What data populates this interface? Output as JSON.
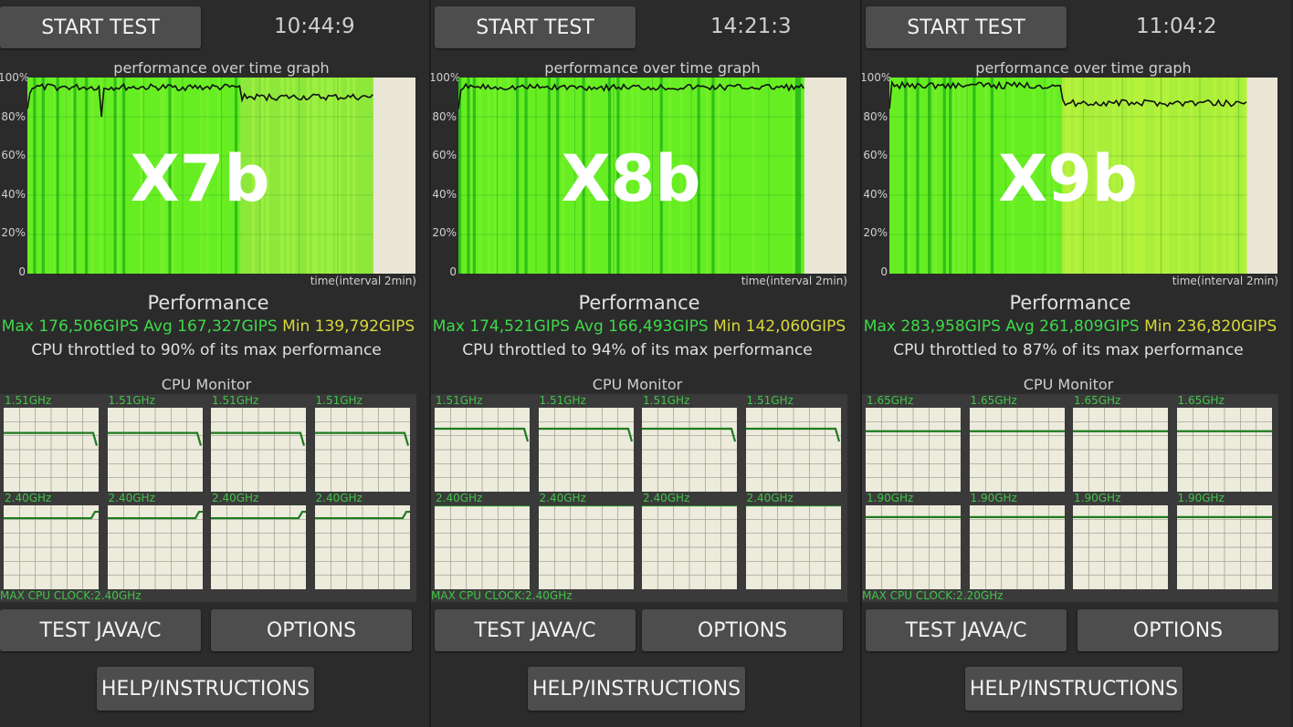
{
  "panels": [
    {
      "start_label": "START TEST",
      "clock": "10:44:9",
      "graph_title": "performance over time graph",
      "y_ticks": [
        "100%",
        "80%",
        "60%",
        "40%",
        "20%",
        "0"
      ],
      "overlay_label": "X7b",
      "time_label": "time(interval 2min)",
      "perf_title": "Performance",
      "stats": {
        "max": "Max 176,506GIPS",
        "avg": "Avg 167,327GIPS",
        "min": "Min 139,792GIPS"
      },
      "throttle": "CPU throttled to 90% of its max performance",
      "monitor_title": "CPU Monitor",
      "cores": [
        {
          "freq": "1.51GHz",
          "level": 0.7,
          "drop": true
        },
        {
          "freq": "1.51GHz",
          "level": 0.7,
          "drop": true
        },
        {
          "freq": "1.51GHz",
          "level": 0.7,
          "drop": true
        },
        {
          "freq": "1.51GHz",
          "level": 0.7,
          "drop": true
        },
        {
          "freq": "2.40GHz",
          "level": 0.88,
          "drop": false,
          "rise": true
        },
        {
          "freq": "2.40GHz",
          "level": 0.88,
          "drop": false,
          "rise": true
        },
        {
          "freq": "2.40GHz",
          "level": 0.88,
          "drop": false,
          "rise": true
        },
        {
          "freq": "2.40GHz",
          "level": 0.88,
          "drop": false,
          "rise": true
        }
      ],
      "max_clock": "MAX CPU CLOCK:2.40GHz",
      "test_label": "TEST JAVA/C",
      "options_label": "OPTIONS",
      "help_label": "HELP/INSTRUCTIONS",
      "progress_fraction": 0.89
    },
    {
      "start_label": "START TEST",
      "clock": "14:21:3",
      "graph_title": "performance over time graph",
      "y_ticks": [
        "100%",
        "80%",
        "60%",
        "40%",
        "20%",
        "0"
      ],
      "overlay_label": "X8b",
      "time_label": "time(interval 2min)",
      "perf_title": "Performance",
      "stats": {
        "max": "Max 174,521GIPS",
        "avg": "Avg 166,493GIPS",
        "min": "Min 142,060GIPS"
      },
      "throttle": "CPU throttled to 94% of its max performance",
      "monitor_title": "CPU Monitor",
      "cores": [
        {
          "freq": "1.51GHz",
          "level": 0.75,
          "drop": true
        },
        {
          "freq": "1.51GHz",
          "level": 0.75,
          "drop": true
        },
        {
          "freq": "1.51GHz",
          "level": 0.75,
          "drop": true
        },
        {
          "freq": "1.51GHz",
          "level": 0.75,
          "drop": true
        },
        {
          "freq": "2.40GHz",
          "level": 1.0,
          "drop": false
        },
        {
          "freq": "2.40GHz",
          "level": 1.0,
          "drop": false
        },
        {
          "freq": "2.40GHz",
          "level": 1.0,
          "drop": false
        },
        {
          "freq": "2.40GHz",
          "level": 1.0,
          "drop": false
        }
      ],
      "max_clock": "MAX CPU CLOCK:2.40GHz",
      "test_label": "TEST JAVA/C",
      "options_label": "OPTIONS",
      "help_label": "HELP/INSTRUCTIONS",
      "progress_fraction": 0.89
    },
    {
      "start_label": "START TEST",
      "clock": "11:04:2",
      "graph_title": "performance over time graph",
      "y_ticks": [
        "100%",
        "80%",
        "60%",
        "40%",
        "20%",
        "0"
      ],
      "overlay_label": "X9b",
      "time_label": "time(interval 2min)",
      "perf_title": "Performance",
      "stats": {
        "max": "Max 283,958GIPS",
        "avg": "Avg 261,809GIPS",
        "min": "Min 236,820GIPS"
      },
      "throttle": "CPU throttled to 87% of its max performance",
      "monitor_title": "CPU Monitor",
      "cores": [
        {
          "freq": "1.65GHz",
          "level": 0.72,
          "drop": false
        },
        {
          "freq": "1.65GHz",
          "level": 0.72,
          "drop": false
        },
        {
          "freq": "1.65GHz",
          "level": 0.72,
          "drop": false
        },
        {
          "freq": "1.65GHz",
          "level": 0.72,
          "drop": false
        },
        {
          "freq": "1.90GHz",
          "level": 0.86,
          "drop": false
        },
        {
          "freq": "1.90GHz",
          "level": 0.86,
          "drop": false
        },
        {
          "freq": "1.90GHz",
          "level": 0.86,
          "drop": false
        },
        {
          "freq": "1.90GHz",
          "level": 0.86,
          "drop": false
        }
      ],
      "max_clock": "MAX CPU CLOCK:2.20GHz",
      "test_label": "TEST JAVA/C",
      "options_label": "OPTIONS",
      "help_label": "HELP/INSTRUCTIONS",
      "progress_fraction": 0.92
    }
  ],
  "colors": {
    "bar_green": "#66ee22",
    "bar_green_dark": "#2fbf18",
    "bar_light": "#aaf03a",
    "graph_bg": "#e9e6d6",
    "core_bg": "#ecebdc",
    "core_line": "#1f7a1f",
    "text_green": "#3fd94a",
    "text_yellow": "#d8d83a"
  }
}
